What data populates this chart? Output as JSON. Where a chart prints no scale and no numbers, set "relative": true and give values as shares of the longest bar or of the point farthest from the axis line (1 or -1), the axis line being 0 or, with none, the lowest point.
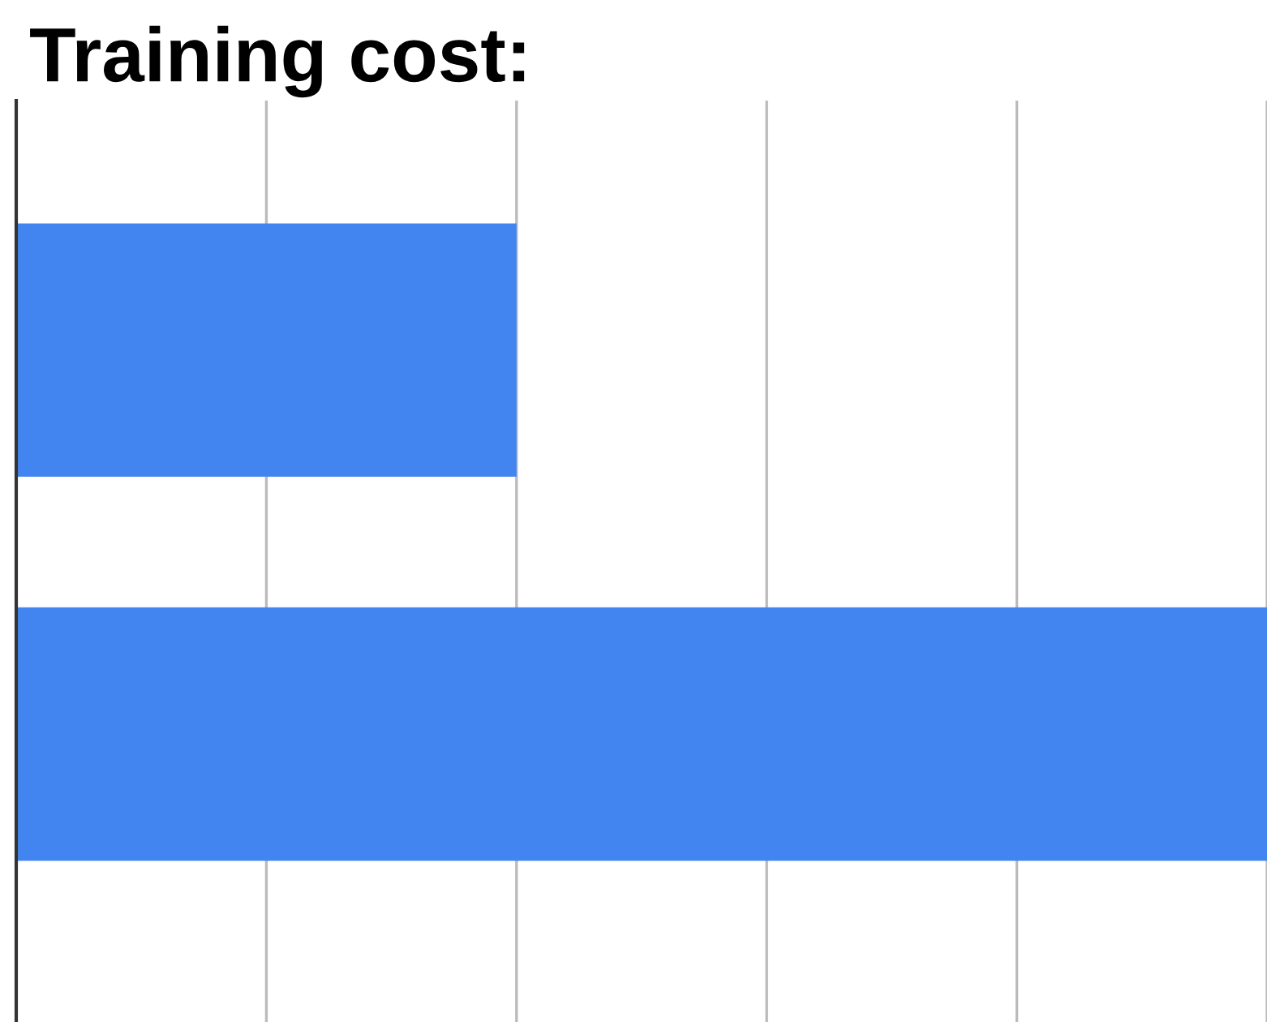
{
  "chart_data": {
    "type": "bar",
    "orientation": "horizontal",
    "title": "Training cost:",
    "categories": [
      null,
      null
    ],
    "values": [
      0.4,
      1
    ],
    "color": "#4285f0",
    "relative": true,
    "grid": "x"
  }
}
